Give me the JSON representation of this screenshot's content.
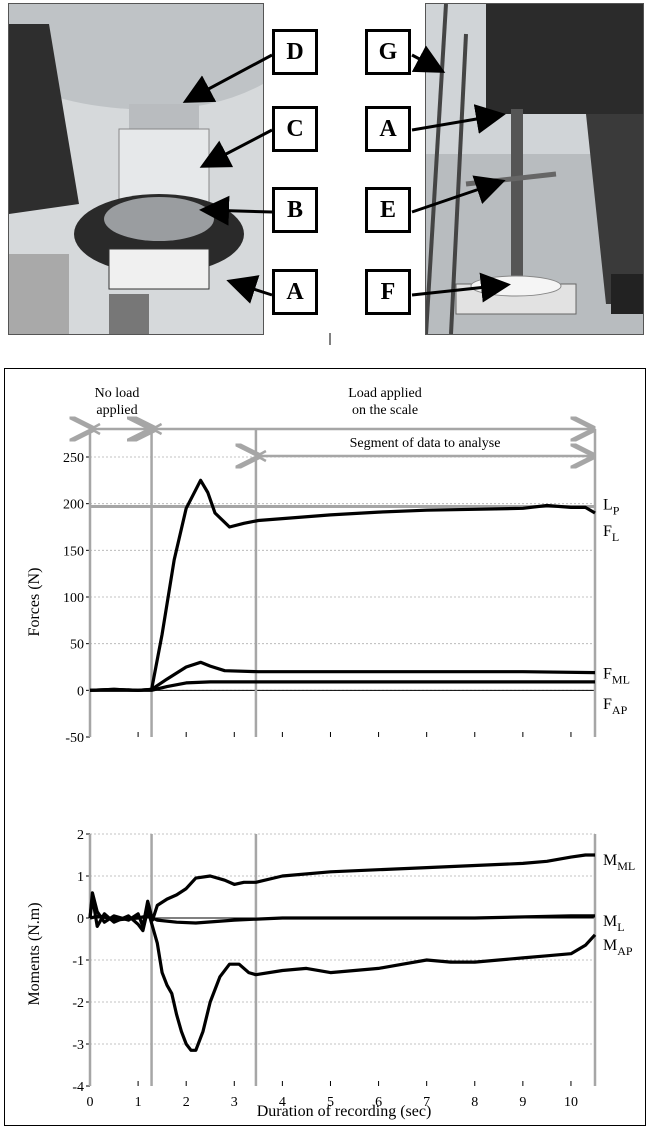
{
  "figure": {
    "labels": [
      "A",
      "B",
      "C",
      "D",
      "E",
      "F",
      "G"
    ],
    "colors": {
      "line": "#000000",
      "marker": "#a6a6a6",
      "grid": "#b0b0b0"
    }
  },
  "chart_data": [
    {
      "type": "line",
      "ylabel": "Forces (N)",
      "ylim": [
        -50,
        250
      ],
      "yticks": [
        -50,
        0,
        50,
        100,
        150,
        200,
        250
      ],
      "xlim": [
        0,
        10.5
      ],
      "grid": true,
      "reference_line": {
        "label": "L",
        "sub": "P",
        "value": 197
      },
      "series": [
        {
          "label": "F",
          "sub": "L",
          "x": [
            0,
            0.5,
            1,
            1.28,
            1.5,
            1.75,
            2.0,
            2.2,
            2.3,
            2.45,
            2.6,
            2.9,
            3.2,
            3.5,
            4,
            5,
            6,
            7,
            8,
            9,
            9.5,
            10,
            10.3,
            10.5
          ],
          "y": [
            0,
            1,
            0,
            1,
            60,
            140,
            195,
            215,
            225,
            212,
            190,
            175,
            179,
            182,
            184,
            188,
            191,
            193,
            194,
            195,
            198,
            196,
            196,
            190
          ]
        },
        {
          "label": "F",
          "sub": "ML",
          "x": [
            0,
            0.5,
            1,
            1.28,
            1.6,
            2.0,
            2.3,
            2.5,
            2.8,
            3.5,
            5,
            7,
            9,
            10.5
          ],
          "y": [
            0,
            1,
            0,
            1,
            12,
            25,
            30,
            26,
            21,
            20,
            20,
            20,
            20,
            19
          ]
        },
        {
          "label": "F",
          "sub": "AP",
          "x": [
            0,
            0.5,
            1,
            1.28,
            1.6,
            2.0,
            2.5,
            3.5,
            5,
            7,
            9,
            10.5
          ],
          "y": [
            0,
            0,
            0,
            0,
            4,
            8,
            9,
            9,
            9,
            9,
            9,
            9
          ]
        }
      ],
      "annotations": {
        "no_load": "No load applied",
        "load_applied": "Load applied on the scale",
        "segment": "Segment of data to analyse"
      },
      "markers_x": [
        0,
        1.28,
        3.45,
        10.5
      ]
    },
    {
      "type": "line",
      "ylabel": "Moments (N.m)",
      "xlabel": "Duration of recording (sec)",
      "ylim": [
        -4,
        2
      ],
      "yticks": [
        -4,
        -3,
        -2,
        -1,
        0,
        1,
        2
      ],
      "xlim": [
        0,
        10.5
      ],
      "xticks": [
        0,
        1,
        2,
        3,
        4,
        5,
        6,
        7,
        8,
        9,
        10
      ],
      "grid": true,
      "series": [
        {
          "label": "M",
          "sub": "ML",
          "x": [
            0,
            0.05,
            0.15,
            0.3,
            0.5,
            0.8,
            1.0,
            1.1,
            1.2,
            1.3,
            1.4,
            1.6,
            1.8,
            2.0,
            2.2,
            2.5,
            2.8,
            3.0,
            3.2,
            3.45,
            4,
            5,
            6,
            7,
            8,
            9,
            9.5,
            10,
            10.3,
            10.5
          ],
          "y": [
            0,
            0.6,
            0.15,
            -0.1,
            0.05,
            -0.05,
            0.1,
            -0.2,
            0.4,
            -0.05,
            0.3,
            0.45,
            0.55,
            0.7,
            0.95,
            1.0,
            0.9,
            0.8,
            0.85,
            0.85,
            1.0,
            1.1,
            1.15,
            1.2,
            1.25,
            1.3,
            1.35,
            1.45,
            1.5,
            1.5
          ]
        },
        {
          "label": "M",
          "sub": "L",
          "x": [
            0,
            0.2,
            0.5,
            1.0,
            1.2,
            1.4,
            1.8,
            2.2,
            3.0,
            4,
            6,
            8,
            10,
            10.5
          ],
          "y": [
            0,
            0.05,
            -0.05,
            0,
            0.05,
            -0.05,
            -0.1,
            -0.12,
            -0.05,
            0,
            0,
            0,
            0.05,
            0.05
          ]
        },
        {
          "label": "M",
          "sub": "AP",
          "x": [
            0,
            0.05,
            0.15,
            0.3,
            0.5,
            0.8,
            1.0,
            1.1,
            1.2,
            1.3,
            1.4,
            1.5,
            1.6,
            1.7,
            1.8,
            1.9,
            2.0,
            2.1,
            2.2,
            2.35,
            2.5,
            2.7,
            2.9,
            3.1,
            3.3,
            3.45,
            4,
            4.5,
            5,
            5.5,
            6,
            6.5,
            7,
            7.5,
            8,
            8.5,
            9,
            9.5,
            10,
            10.3,
            10.5
          ],
          "y": [
            0,
            0.5,
            -0.2,
            0.1,
            -0.1,
            0.05,
            -0.15,
            -0.3,
            0.2,
            -0.2,
            -0.6,
            -1.3,
            -1.6,
            -1.8,
            -2.3,
            -2.7,
            -3.0,
            -3.15,
            -3.15,
            -2.7,
            -2.0,
            -1.4,
            -1.1,
            -1.1,
            -1.3,
            -1.35,
            -1.25,
            -1.2,
            -1.3,
            -1.25,
            -1.2,
            -1.1,
            -1.0,
            -1.05,
            -1.05,
            -1.0,
            -0.95,
            -0.9,
            -0.85,
            -0.65,
            -0.4
          ]
        }
      ],
      "markers_x": [
        0,
        1.28,
        3.45,
        10.5
      ]
    }
  ]
}
